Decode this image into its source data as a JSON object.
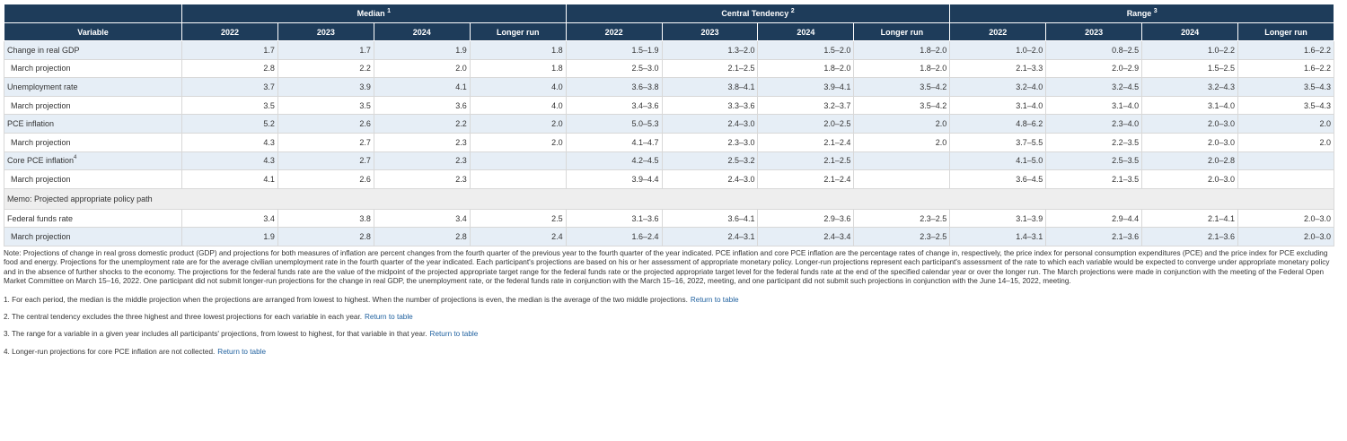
{
  "table": {
    "variable_header": "Variable",
    "groups": [
      {
        "label": "Median",
        "sup": "1"
      },
      {
        "label": "Central Tendency",
        "sup": "2"
      },
      {
        "label": "Range",
        "sup": "3"
      }
    ],
    "subheaders": [
      "2022",
      "2023",
      "2024",
      "Longer run"
    ],
    "rows": [
      {
        "label": "Change in real GDP",
        "sup": "",
        "indent": false,
        "shade": true,
        "median": [
          "1.7",
          "1.7",
          "1.9",
          "1.8"
        ],
        "central": [
          "1.5–1.9",
          "1.3–2.0",
          "1.5–2.0",
          "1.8–2.0"
        ],
        "range": [
          "1.0–2.0",
          "0.8–2.5",
          "1.0–2.2",
          "1.6–2.2"
        ]
      },
      {
        "label": "March projection",
        "sup": "",
        "indent": true,
        "shade": false,
        "median": [
          "2.8",
          "2.2",
          "2.0",
          "1.8"
        ],
        "central": [
          "2.5–3.0",
          "2.1–2.5",
          "1.8–2.0",
          "1.8–2.0"
        ],
        "range": [
          "2.1–3.3",
          "2.0–2.9",
          "1.5–2.5",
          "1.6–2.2"
        ]
      },
      {
        "label": "Unemployment rate",
        "sup": "",
        "indent": false,
        "shade": true,
        "median": [
          "3.7",
          "3.9",
          "4.1",
          "4.0"
        ],
        "central": [
          "3.6–3.8",
          "3.8–4.1",
          "3.9–4.1",
          "3.5–4.2"
        ],
        "range": [
          "3.2–4.0",
          "3.2–4.5",
          "3.2–4.3",
          "3.5–4.3"
        ]
      },
      {
        "label": "March projection",
        "sup": "",
        "indent": true,
        "shade": false,
        "median": [
          "3.5",
          "3.5",
          "3.6",
          "4.0"
        ],
        "central": [
          "3.4–3.6",
          "3.3–3.6",
          "3.2–3.7",
          "3.5–4.2"
        ],
        "range": [
          "3.1–4.0",
          "3.1–4.0",
          "3.1–4.0",
          "3.5–4.3"
        ]
      },
      {
        "label": "PCE inflation",
        "sup": "",
        "indent": false,
        "shade": true,
        "median": [
          "5.2",
          "2.6",
          "2.2",
          "2.0"
        ],
        "central": [
          "5.0–5.3",
          "2.4–3.0",
          "2.0–2.5",
          "2.0"
        ],
        "range": [
          "4.8–6.2",
          "2.3–4.0",
          "2.0–3.0",
          "2.0"
        ]
      },
      {
        "label": "March projection",
        "sup": "",
        "indent": true,
        "shade": false,
        "median": [
          "4.3",
          "2.7",
          "2.3",
          "2.0"
        ],
        "central": [
          "4.1–4.7",
          "2.3–3.0",
          "2.1–2.4",
          "2.0"
        ],
        "range": [
          "3.7–5.5",
          "2.2–3.5",
          "2.0–3.0",
          "2.0"
        ]
      },
      {
        "label": "Core PCE inflation",
        "sup": "4",
        "indent": false,
        "shade": true,
        "median": [
          "4.3",
          "2.7",
          "2.3",
          ""
        ],
        "central": [
          "4.2–4.5",
          "2.5–3.2",
          "2.1–2.5",
          ""
        ],
        "range": [
          "4.1–5.0",
          "2.5–3.5",
          "2.0–2.8",
          ""
        ]
      },
      {
        "label": "March projection",
        "sup": "",
        "indent": true,
        "shade": false,
        "median": [
          "4.1",
          "2.6",
          "2.3",
          ""
        ],
        "central": [
          "3.9–4.4",
          "2.4–3.0",
          "2.1–2.4",
          ""
        ],
        "range": [
          "3.6–4.5",
          "2.1–3.5",
          "2.0–3.0",
          ""
        ]
      }
    ],
    "memo_label": "Memo: Projected appropriate policy path",
    "rows2": [
      {
        "label": "Federal funds rate",
        "sup": "",
        "indent": false,
        "shade": false,
        "median": [
          "3.4",
          "3.8",
          "3.4",
          "2.5"
        ],
        "central": [
          "3.1–3.6",
          "3.6–4.1",
          "2.9–3.6",
          "2.3–2.5"
        ],
        "range": [
          "3.1–3.9",
          "2.9–4.4",
          "2.1–4.1",
          "2.0–3.0"
        ]
      },
      {
        "label": "March projection",
        "sup": "",
        "indent": true,
        "shade": true,
        "median": [
          "1.9",
          "2.8",
          "2.8",
          "2.4"
        ],
        "central": [
          "1.6–2.4",
          "2.4–3.1",
          "2.4–3.4",
          "2.3–2.5"
        ],
        "range": [
          "1.4–3.1",
          "2.1–3.6",
          "2.1–3.6",
          "2.0–3.0"
        ]
      }
    ]
  },
  "notes": {
    "main": "Note: Projections of change in real gross domestic product (GDP) and projections for both measures of inflation are percent changes from the fourth quarter of the previous year to the fourth quarter of the year indicated. PCE inflation and core PCE inflation are the percentage rates of change in, respectively, the price index for personal consumption expenditures (PCE) and the price index for PCE excluding food and energy. Projections for the unemployment rate are for the average civilian unemployment rate in the fourth quarter of the year indicated. Each participant's projections are based on his or her assessment of appropriate monetary policy. Longer-run projections represent each participant's assessment of the rate to which each variable would be expected to converge under appropriate monetary policy and in the absence of further shocks to the economy. The projections for the federal funds rate are the value of the midpoint of the projected appropriate target range for the federal funds rate or the projected appropriate target level for the federal funds rate at the end of the specified calendar year or over the longer run. The March projections were made in conjunction with the meeting of the Federal Open Market Committee on March 15–16, 2022. One participant did not submit longer-run projections for the change in real GDP, the unemployment rate, or the federal funds rate in conjunction with the March 15–16, 2022, meeting, and one participant did not submit such projections in conjunction with the June 14–15, 2022, meeting.",
    "footnotes": [
      {
        "text": "1. For each period, the median is the middle projection when the projections are arranged from lowest to highest. When the number of projections is even, the median is the average of the two middle projections.",
        "link": "Return to table"
      },
      {
        "text": "2. The central tendency excludes the three highest and three lowest projections for each variable in each year.",
        "link": "Return to table"
      },
      {
        "text": "3. The range for a variable in a given year includes all participants' projections, from lowest to highest, for that variable in that year.",
        "link": "Return to table"
      },
      {
        "text": "4. Longer-run projections for core PCE inflation are not collected.",
        "link": "Return to table"
      }
    ]
  }
}
